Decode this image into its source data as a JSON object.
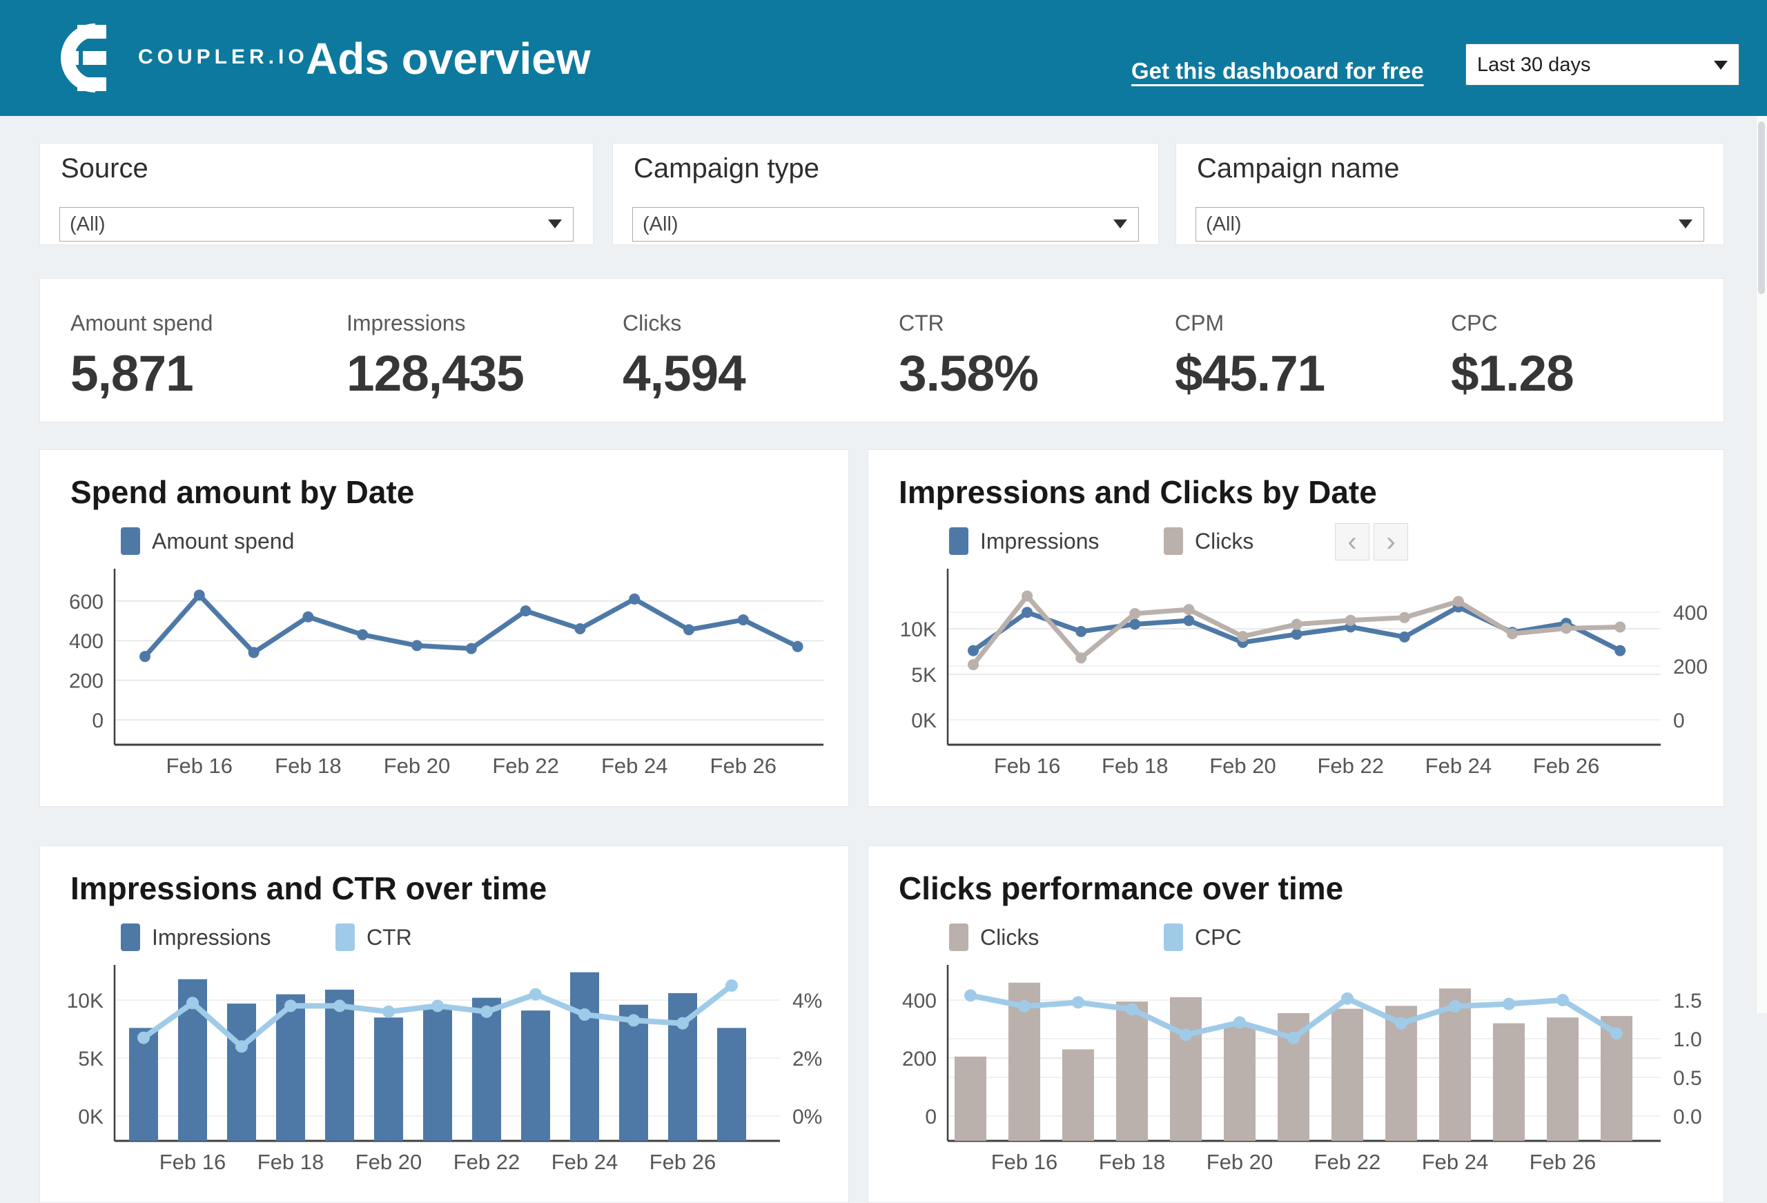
{
  "header": {
    "brand": "COUPLER.IO",
    "title": "Ads overview",
    "link_label": "Get this dashboard for free",
    "date_range": "Last 30 days"
  },
  "ui": {
    "pager_prev": "‹",
    "pager_next": "›"
  },
  "colors": {
    "header_bg": "#0e799e",
    "accent_blue": "#4e79a7",
    "taupe": "#bab0ac",
    "light_blue": "#a0cbe8",
    "page_bg": "#eef1f3"
  },
  "filters": [
    {
      "label": "Source",
      "value": "(All)"
    },
    {
      "label": "Campaign type",
      "value": "(All)"
    },
    {
      "label": "Campaign name",
      "value": "(All)"
    }
  ],
  "kpis": [
    {
      "label": "Amount spend",
      "value": "5,871"
    },
    {
      "label": "Impressions",
      "value": "128,435"
    },
    {
      "label": "Clicks",
      "value": "4,594"
    },
    {
      "label": "CTR",
      "value": "3.58%"
    },
    {
      "label": "CPM",
      "value": "$45.71"
    },
    {
      "label": "CPC",
      "value": "$1.28"
    }
  ],
  "chart_data": [
    {
      "id": "spend-by-date",
      "type": "line",
      "title": "Spend amount by Date",
      "categories": [
        "Feb 15",
        "Feb 16",
        "Feb 17",
        "Feb 18",
        "Feb 19",
        "Feb 20",
        "Feb 21",
        "Feb 22",
        "Feb 23",
        "Feb 24",
        "Feb 25",
        "Feb 26",
        "Feb 27"
      ],
      "x_ticks": {
        "indices": [
          1,
          3,
          5,
          7,
          9,
          11
        ],
        "labels": [
          "Feb 16",
          "Feb 18",
          "Feb 20",
          "Feb 22",
          "Feb 24",
          "Feb 26"
        ]
      },
      "series": [
        {
          "name": "Amount spend",
          "color": "#4e79a7",
          "axis": "left",
          "style": "line",
          "values": [
            320,
            630,
            340,
            520,
            430,
            375,
            360,
            550,
            460,
            610,
            455,
            505,
            370
          ]
        }
      ],
      "axes": {
        "left": {
          "ticks": [
            {
              "v": 600,
              "label": "600"
            },
            {
              "v": 400,
              "label": "400"
            },
            {
              "v": 200,
              "label": "200"
            },
            {
              "v": 0,
              "label": "0"
            }
          ],
          "range": [
            0,
            700
          ]
        }
      }
    },
    {
      "id": "impressions-clicks-by-date",
      "type": "line",
      "title": "Impressions and Clicks by Date",
      "pager": true,
      "categories": [
        "Feb 15",
        "Feb 16",
        "Feb 17",
        "Feb 18",
        "Feb 19",
        "Feb 20",
        "Feb 21",
        "Feb 22",
        "Feb 23",
        "Feb 24",
        "Feb 25",
        "Feb 26",
        "Feb 27"
      ],
      "x_ticks": {
        "indices": [
          1,
          3,
          5,
          7,
          9,
          11
        ],
        "labels": [
          "Feb 16",
          "Feb 18",
          "Feb 20",
          "Feb 22",
          "Feb 24",
          "Feb 26"
        ]
      },
      "series": [
        {
          "name": "Impressions",
          "color": "#4e79a7",
          "axis": "left",
          "style": "line",
          "values": [
            7600,
            11800,
            9700,
            10500,
            10900,
            8500,
            9400,
            10200,
            9100,
            12400,
            9600,
            10600,
            7600
          ]
        },
        {
          "name": "Clicks",
          "color": "#bab0ac",
          "axis": "right",
          "style": "line",
          "values": [
            205,
            460,
            230,
            395,
            410,
            310,
            355,
            370,
            380,
            440,
            320,
            340,
            345
          ]
        }
      ],
      "axes": {
        "left": {
          "ticks": [
            {
              "v": 10000,
              "label": "10K"
            },
            {
              "v": 5000,
              "label": "5K"
            },
            {
              "v": 0,
              "label": "0K"
            }
          ],
          "range": [
            0,
            13000
          ]
        },
        "right": {
          "ticks": [
            {
              "v": 400,
              "label": "400"
            },
            {
              "v": 200,
              "label": "200"
            },
            {
              "v": 0,
              "label": "0"
            }
          ],
          "range": [
            0,
            480
          ]
        }
      }
    },
    {
      "id": "impressions-ctr-over-time",
      "type": "bar-line",
      "title": "Impressions and CTR over time",
      "categories": [
        "Feb 15",
        "Feb 16",
        "Feb 17",
        "Feb 18",
        "Feb 19",
        "Feb 20",
        "Feb 21",
        "Feb 22",
        "Feb 23",
        "Feb 24",
        "Feb 25",
        "Feb 26",
        "Feb 27"
      ],
      "x_ticks": {
        "indices": [
          1,
          3,
          5,
          7,
          9,
          11
        ],
        "labels": [
          "Feb 16",
          "Feb 18",
          "Feb 20",
          "Feb 22",
          "Feb 24",
          "Feb 26"
        ]
      },
      "series": [
        {
          "name": "Impressions",
          "color": "#4e79a7",
          "axis": "left",
          "style": "bar",
          "values": [
            7600,
            11800,
            9700,
            10500,
            10900,
            8500,
            9400,
            10200,
            9100,
            12400,
            9600,
            10600,
            7600
          ]
        },
        {
          "name": "CTR",
          "color": "#a0cbe8",
          "axis": "right",
          "style": "line",
          "values": [
            2.7,
            3.9,
            2.4,
            3.8,
            3.8,
            3.6,
            3.8,
            3.6,
            4.2,
            3.5,
            3.3,
            3.2,
            4.5
          ]
        }
      ],
      "axes": {
        "left": {
          "ticks": [
            {
              "v": 10000,
              "label": "10K"
            },
            {
              "v": 5000,
              "label": "5K"
            },
            {
              "v": 0,
              "label": "0K"
            }
          ],
          "range": [
            0,
            13000
          ]
        },
        "right": {
          "ticks": [
            {
              "v": 4,
              "label": "4%"
            },
            {
              "v": 2,
              "label": "2%"
            },
            {
              "v": 0,
              "label": "0%"
            }
          ],
          "range": [
            0,
            5
          ]
        }
      }
    },
    {
      "id": "clicks-performance-over-time",
      "type": "bar-line",
      "title": "Clicks performance over time",
      "categories": [
        "Feb 15",
        "Feb 16",
        "Feb 17",
        "Feb 18",
        "Feb 19",
        "Feb 20",
        "Feb 21",
        "Feb 22",
        "Feb 23",
        "Feb 24",
        "Feb 25",
        "Feb 26",
        "Feb 27"
      ],
      "x_ticks": {
        "indices": [
          1,
          3,
          5,
          7,
          9,
          11
        ],
        "labels": [
          "Feb 16",
          "Feb 18",
          "Feb 20",
          "Feb 22",
          "Feb 24",
          "Feb 26"
        ]
      },
      "series": [
        {
          "name": "Clicks",
          "color": "#bab0ac",
          "axis": "left",
          "style": "bar",
          "values": [
            205,
            460,
            230,
            395,
            410,
            310,
            355,
            370,
            380,
            440,
            320,
            340,
            345
          ]
        },
        {
          "name": "CPC",
          "color": "#a0cbe8",
          "axis": "right",
          "style": "line",
          "values": [
            1.56,
            1.42,
            1.47,
            1.38,
            1.05,
            1.21,
            1.01,
            1.52,
            1.2,
            1.42,
            1.45,
            1.5,
            1.07
          ]
        }
      ],
      "axes": {
        "left": {
          "ticks": [
            {
              "v": 400,
              "label": "400"
            },
            {
              "v": 200,
              "label": "200"
            },
            {
              "v": 0,
              "label": "0"
            }
          ],
          "range": [
            0,
            520
          ]
        },
        "right": {
          "ticks": [
            {
              "v": 1.5,
              "label": "1.5"
            },
            {
              "v": 1,
              "label": "1.0"
            },
            {
              "v": 0.5,
              "label": "0.5"
            },
            {
              "v": 0,
              "label": "0.0"
            }
          ],
          "range": [
            0,
            1.8
          ]
        }
      }
    }
  ]
}
